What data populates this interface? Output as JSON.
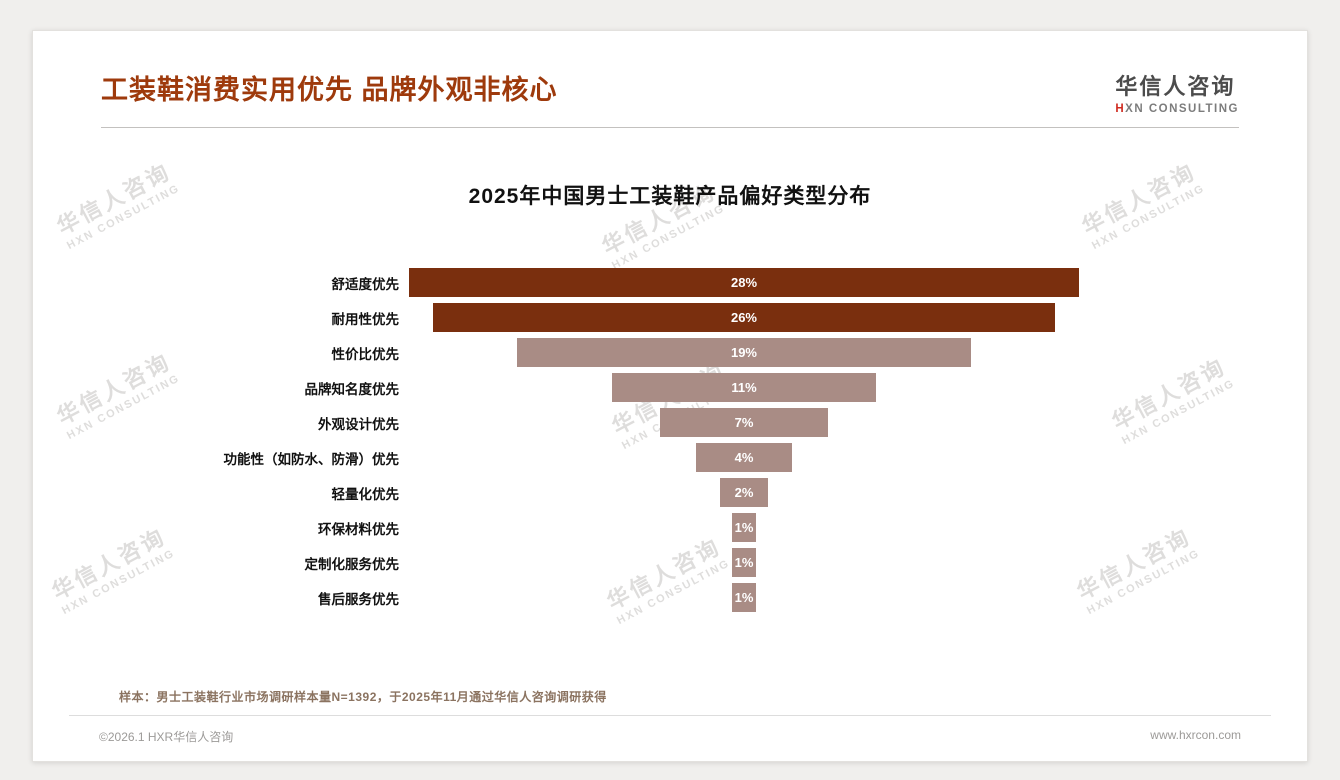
{
  "header": {
    "title": "工装鞋消费实用优先 品牌外观非核心",
    "logo": {
      "name": "华信人咨询",
      "sub_prefix": "H",
      "sub_rest": "XN CONSULTING"
    }
  },
  "watermark": {
    "line1": "华信人咨询",
    "line2": "HXN CONSULTING"
  },
  "chart_data": {
    "type": "bar",
    "title": "2025年中国男士工装鞋产品偏好类型分布",
    "orientation": "horizontal",
    "layout": "centered-funnel",
    "categories": [
      "舒适度优先",
      "耐用性优先",
      "性价比优先",
      "品牌知名度优先",
      "外观设计优先",
      "功能性（如防水、防滑）优先",
      "轻量化优先",
      "环保材料优先",
      "定制化服务优先",
      "售后服务优先"
    ],
    "values": [
      28,
      26,
      19,
      11,
      7,
      4,
      2,
      1,
      1,
      1
    ],
    "value_labels": [
      "28%",
      "26%",
      "19%",
      "11%",
      "7%",
      "4%",
      "2%",
      "1%",
      "1%",
      "1%"
    ],
    "unit": "%",
    "axis_max": 28,
    "highlight_count": 2,
    "colors": {
      "primary": "#7a2f0e",
      "secondary": "#a98c85"
    },
    "grid": false,
    "legend": null
  },
  "footnote": "样本：男士工装鞋行业市场调研样本量N=1392，于2025年11月通过华信人咨询调研获得",
  "footer": {
    "left": "©2026.1 HXR华信人咨询",
    "right": "www.hxrcon.com"
  }
}
